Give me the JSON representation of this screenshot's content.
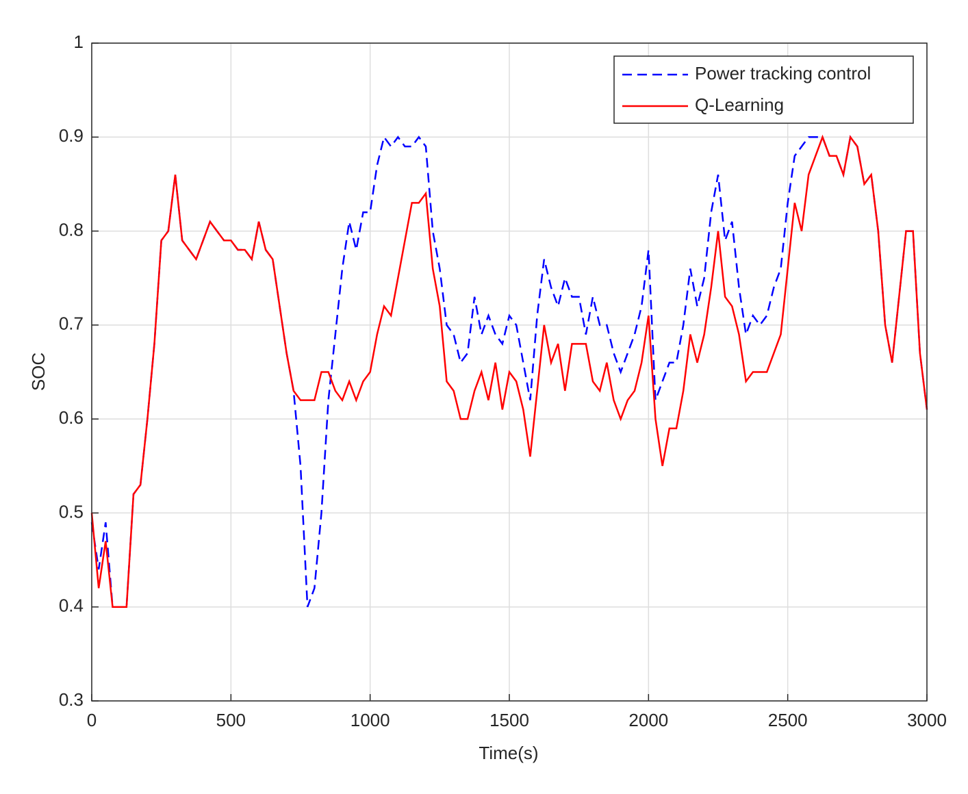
{
  "chart_data": {
    "type": "line",
    "xlabel": "Time(s)",
    "ylabel": "SOC",
    "x": [
      0,
      25,
      50,
      75,
      100,
      125,
      150,
      175,
      200,
      225,
      250,
      275,
      300,
      325,
      350,
      375,
      400,
      425,
      450,
      475,
      500,
      525,
      550,
      575,
      600,
      625,
      650,
      675,
      700,
      725,
      750,
      775,
      800,
      825,
      850,
      875,
      900,
      925,
      950,
      975,
      1000,
      1025,
      1050,
      1075,
      1100,
      1125,
      1150,
      1175,
      1200,
      1225,
      1250,
      1275,
      1300,
      1325,
      1350,
      1375,
      1400,
      1425,
      1450,
      1475,
      1500,
      1525,
      1550,
      1575,
      1600,
      1625,
      1650,
      1675,
      1700,
      1725,
      1750,
      1775,
      1800,
      1825,
      1850,
      1875,
      1900,
      1925,
      1950,
      1975,
      2000,
      2025,
      2050,
      2075,
      2100,
      2125,
      2150,
      2175,
      2200,
      2225,
      2250,
      2275,
      2300,
      2325,
      2350,
      2375,
      2400,
      2425,
      2450,
      2475,
      2500,
      2525,
      2550,
      2575,
      2600,
      2625,
      2650,
      2675,
      2700,
      2725,
      2750,
      2775,
      2800,
      2825,
      2850,
      2875,
      2900,
      2925,
      2950,
      2975,
      3000
    ],
    "series": [
      {
        "name": "Power tracking control",
        "color": "#0000ff",
        "dash": true,
        "values": [
          0.49,
          0.44,
          0.49,
          0.4,
          0.4,
          0.4,
          0.52,
          0.53,
          0.6,
          0.68,
          0.79,
          0.8,
          0.86,
          0.79,
          0.78,
          0.77,
          0.79,
          0.81,
          0.8,
          0.79,
          0.79,
          0.78,
          0.78,
          0.77,
          0.81,
          0.78,
          0.77,
          0.72,
          0.67,
          0.63,
          0.55,
          0.4,
          0.42,
          0.5,
          0.62,
          0.69,
          0.76,
          0.81,
          0.78,
          0.82,
          0.82,
          0.87,
          0.9,
          0.89,
          0.9,
          0.89,
          0.89,
          0.9,
          0.89,
          0.8,
          0.76,
          0.7,
          0.69,
          0.66,
          0.67,
          0.73,
          0.69,
          0.71,
          0.69,
          0.68,
          0.71,
          0.7,
          0.66,
          0.62,
          0.71,
          0.77,
          0.74,
          0.72,
          0.75,
          0.73,
          0.73,
          0.69,
          0.73,
          0.7,
          0.7,
          0.67,
          0.65,
          0.67,
          0.69,
          0.72,
          0.78,
          0.62,
          0.64,
          0.66,
          0.66,
          0.7,
          0.76,
          0.72,
          0.75,
          0.82,
          0.86,
          0.79,
          0.81,
          0.74,
          0.69,
          0.71,
          0.7,
          0.71,
          0.74,
          0.76,
          0.83,
          0.88,
          0.89,
          0.9,
          0.9,
          0.9,
          0.88,
          0.88,
          0.86,
          0.9,
          0.89,
          0.85,
          0.86,
          0.8,
          0.7,
          0.66,
          0.73,
          0.8,
          0.8,
          0.67,
          0.61
        ]
      },
      {
        "name": "Q-Learning",
        "color": "#ff0000",
        "dash": false,
        "values": [
          0.5,
          0.42,
          0.47,
          0.4,
          0.4,
          0.4,
          0.52,
          0.53,
          0.6,
          0.68,
          0.79,
          0.8,
          0.86,
          0.79,
          0.78,
          0.77,
          0.79,
          0.81,
          0.8,
          0.79,
          0.79,
          0.78,
          0.78,
          0.77,
          0.81,
          0.78,
          0.77,
          0.72,
          0.67,
          0.63,
          0.62,
          0.62,
          0.62,
          0.65,
          0.65,
          0.63,
          0.62,
          0.64,
          0.62,
          0.64,
          0.65,
          0.69,
          0.72,
          0.71,
          0.75,
          0.79,
          0.83,
          0.83,
          0.84,
          0.76,
          0.72,
          0.64,
          0.63,
          0.6,
          0.6,
          0.63,
          0.65,
          0.62,
          0.66,
          0.61,
          0.65,
          0.64,
          0.61,
          0.56,
          0.63,
          0.7,
          0.66,
          0.68,
          0.63,
          0.68,
          0.68,
          0.68,
          0.64,
          0.63,
          0.66,
          0.62,
          0.6,
          0.62,
          0.63,
          0.66,
          0.71,
          0.6,
          0.55,
          0.59,
          0.59,
          0.63,
          0.69,
          0.66,
          0.69,
          0.74,
          0.8,
          0.73,
          0.72,
          0.69,
          0.64,
          0.65,
          0.65,
          0.65,
          0.67,
          0.69,
          0.76,
          0.83,
          0.8,
          0.86,
          0.88,
          0.9,
          0.88,
          0.88,
          0.86,
          0.9,
          0.89,
          0.85,
          0.86,
          0.8,
          0.7,
          0.66,
          0.73,
          0.8,
          0.8,
          0.67,
          0.61
        ]
      }
    ],
    "xlim": [
      0,
      3000
    ],
    "xticks": [
      0,
      500,
      1000,
      1500,
      2000,
      2500,
      3000
    ],
    "ylim": [
      0.3,
      1
    ],
    "yticks": [
      0.3,
      0.4,
      0.5,
      0.6,
      0.7,
      0.8,
      0.9,
      1
    ],
    "grid": true,
    "legend": "northeast"
  }
}
